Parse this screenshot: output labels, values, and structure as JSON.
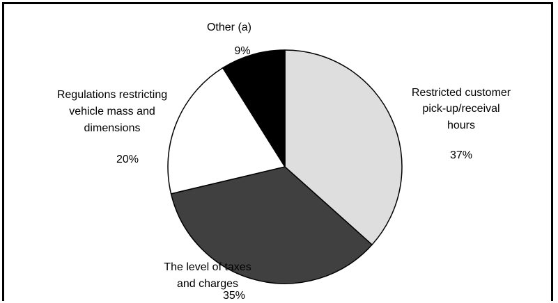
{
  "chart_data": {
    "type": "pie",
    "title": "",
    "start_angle_deg": 0,
    "direction": "clockwise",
    "slices": [
      {
        "label_lines": [
          "Restricted customer",
          "pick-up/receival",
          "hours"
        ],
        "value": 37,
        "value_label": "37%",
        "color": "#dedede"
      },
      {
        "label_lines": [
          "The level of taxes",
          "and charges"
        ],
        "value": 35,
        "value_label": "35%",
        "color": "#404040"
      },
      {
        "label_lines": [
          "Regulations restricting",
          "vehicle mass and",
          "dimensions"
        ],
        "value": 20,
        "value_label": "20%",
        "color": "#ffffff"
      },
      {
        "label_lines": [
          "Other (a)"
        ],
        "value": 9,
        "value_label": "9%",
        "color": "#000000"
      }
    ]
  }
}
